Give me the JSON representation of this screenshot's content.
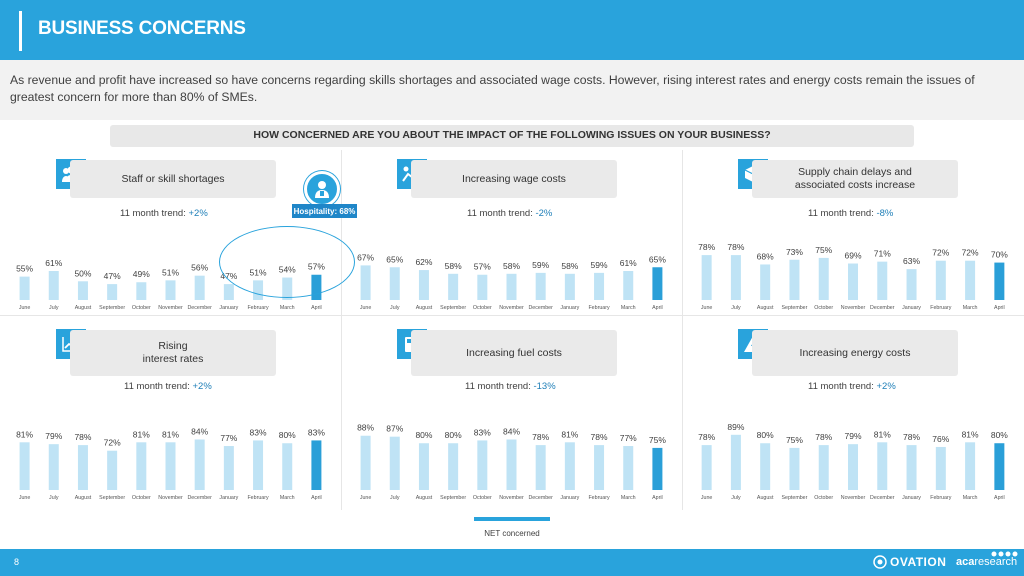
{
  "header": {
    "title": "BUSINESS CONCERNS"
  },
  "intro": "As revenue and profit have increased so have concerns regarding skills shortages and associated wage costs. However, rising interest rates and energy costs remain the issues of greatest concern for more than 80% of SMEs.",
  "question": "HOW CONCERNED ARE YOU ABOUT THE IMPACT OF THE FOLLOWING ISSUES ON YOUR BUSINESS?",
  "callout": {
    "label": "Hospitality: 68%",
    "icon": "person-icon"
  },
  "legend": {
    "label": "NET concerned"
  },
  "footer": {
    "page": "8",
    "brand1": "OVATION",
    "brand2_bold": "aca",
    "brand2_light": "research"
  },
  "colors": {
    "accent": "#29a3dc",
    "bar_light": "#bfe3f5",
    "bar_highlight": "#2a9fd8",
    "header": "#29a3dc"
  },
  "panels": [
    {
      "title": "Staff or skill shortages",
      "trend_label": "11 month trend:",
      "trend_value": "+2%",
      "icon": "people-icon"
    },
    {
      "title": "Increasing wage costs",
      "trend_label": "11 month trend:",
      "trend_value": "-2%",
      "icon": "wage-icon"
    },
    {
      "title": "Supply chain delays and\nassociated costs increase",
      "trend_label": "11 month trend:",
      "trend_value": "-8%",
      "icon": "box-icon"
    },
    {
      "title": "Rising\ninterest rates",
      "trend_label": "11 month trend:",
      "trend_value": "+2%",
      "icon": "line-chart-icon"
    },
    {
      "title": "Increasing fuel costs",
      "trend_label": "11 month trend:",
      "trend_value": "-13%",
      "icon": "fuel-icon"
    },
    {
      "title": "Increasing energy costs",
      "trend_label": "11 month trend:",
      "trend_value": "+2%",
      "icon": "energy-icon"
    }
  ],
  "chart_data": [
    {
      "type": "bar",
      "title": "Staff or skill shortages",
      "categories": [
        "June",
        "July",
        "August",
        "September",
        "October",
        "November",
        "December",
        "January",
        "February",
        "March",
        "April"
      ],
      "values": [
        55,
        61,
        50,
        47,
        49,
        51,
        56,
        47,
        51,
        54,
        57
      ],
      "unit": "%"
    },
    {
      "type": "bar",
      "title": "Increasing wage costs",
      "categories": [
        "June",
        "July",
        "August",
        "September",
        "October",
        "November",
        "December",
        "January",
        "February",
        "March",
        "April"
      ],
      "values": [
        67,
        65,
        62,
        58,
        57,
        58,
        59,
        58,
        59,
        61,
        65
      ],
      "unit": "%"
    },
    {
      "type": "bar",
      "title": "Supply chain delays and associated costs increase",
      "categories": [
        "June",
        "July",
        "August",
        "September",
        "October",
        "November",
        "December",
        "January",
        "February",
        "March",
        "April"
      ],
      "values": [
        78,
        78,
        68,
        73,
        75,
        69,
        71,
        63,
        72,
        72,
        70
      ],
      "unit": "%"
    },
    {
      "type": "bar",
      "title": "Rising interest rates",
      "categories": [
        "June",
        "July",
        "August",
        "September",
        "October",
        "November",
        "December",
        "January",
        "February",
        "March",
        "April"
      ],
      "values": [
        81,
        79,
        78,
        72,
        81,
        81,
        84,
        77,
        83,
        80,
        83
      ],
      "unit": "%"
    },
    {
      "type": "bar",
      "title": "Increasing fuel costs",
      "categories": [
        "June",
        "July",
        "August",
        "September",
        "October",
        "November",
        "December",
        "January",
        "February",
        "March",
        "April"
      ],
      "values": [
        88,
        87,
        80,
        80,
        83,
        84,
        78,
        81,
        78,
        77,
        75
      ],
      "unit": "%"
    },
    {
      "type": "bar",
      "title": "Increasing energy costs",
      "categories": [
        "June",
        "July",
        "August",
        "September",
        "October",
        "November",
        "December",
        "January",
        "February",
        "March",
        "April"
      ],
      "values": [
        78,
        89,
        80,
        75,
        78,
        79,
        81,
        78,
        76,
        81,
        80
      ],
      "unit": "%"
    }
  ]
}
